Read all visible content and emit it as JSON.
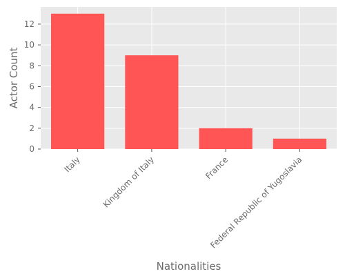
{
  "chart_data": {
    "type": "bar",
    "title": "",
    "xlabel": "Nationalities",
    "ylabel": "Actor Count",
    "categories": [
      "Italy",
      "Kingdom of Italy",
      "France",
      "Federal Republic of Yugoslavia"
    ],
    "values": [
      13,
      9,
      2,
      1
    ],
    "ylim": [
      0,
      13.65
    ],
    "yticks": [
      0,
      2,
      4,
      6,
      8,
      10,
      12
    ],
    "grid": true,
    "legend": "none",
    "colors": {
      "bar": "#ff5555",
      "plot_background": "#e9e9e9",
      "grid": "#ffffff",
      "text": "#6b6b6b"
    }
  }
}
